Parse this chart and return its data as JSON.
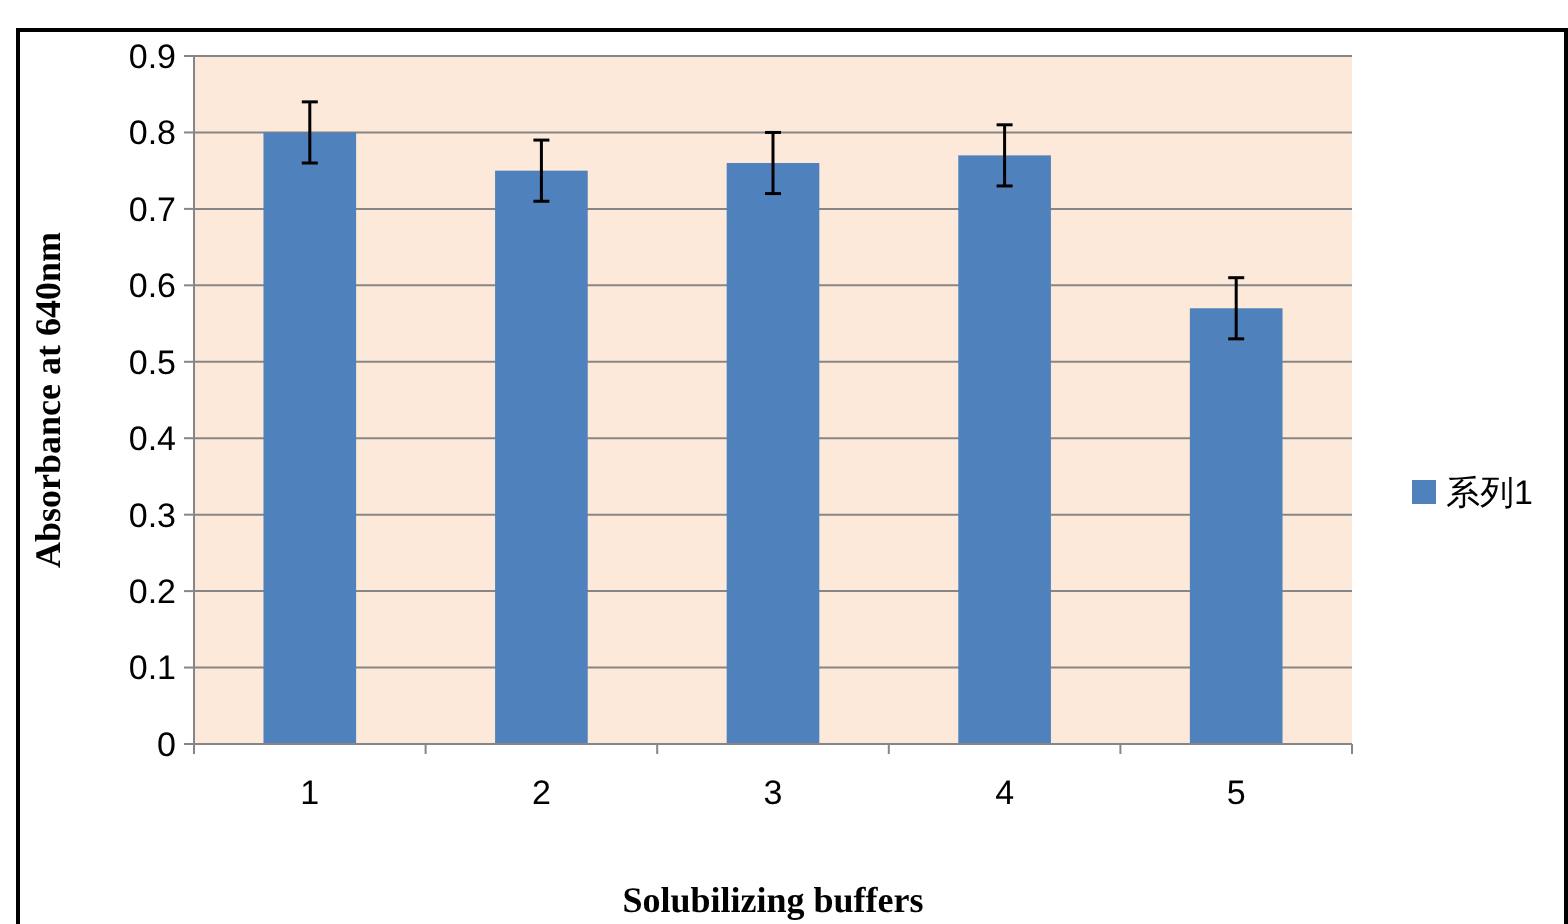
{
  "chart_data": {
    "type": "bar",
    "xlabel": "Solubilizing buffers",
    "ylabel": "Absorbance at 640nm",
    "categories": [
      "1",
      "2",
      "3",
      "4",
      "5"
    ],
    "series": [
      {
        "name": "系列1",
        "color": "#4f81bd",
        "values": [
          0.8,
          0.75,
          0.76,
          0.77,
          0.57
        ],
        "errors": [
          0.04,
          0.04,
          0.04,
          0.04,
          0.04
        ]
      }
    ],
    "ylim": [
      0,
      0.9
    ],
    "yticks": [
      0,
      0.1,
      0.2,
      0.3,
      0.4,
      0.5,
      0.6,
      0.7,
      0.8,
      0.9
    ],
    "grid": "y",
    "legend": "right"
  }
}
